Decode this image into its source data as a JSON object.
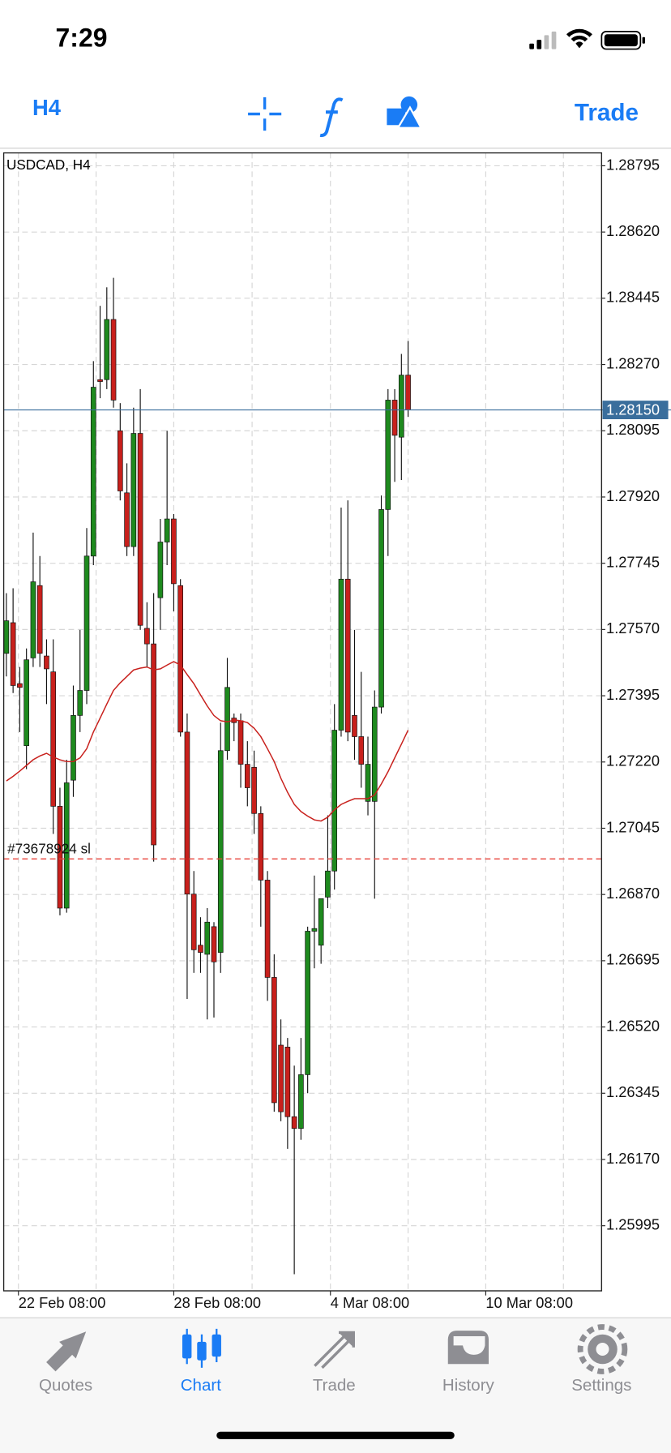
{
  "status_bar": {
    "time": "7:29"
  },
  "toolbar": {
    "timeframe": "H4",
    "trade": "Trade"
  },
  "chart_data": {
    "type": "candlestick",
    "title": "USDCAD, H4",
    "open": [
      1.27507,
      1.27588,
      1.27427,
      1.27263,
      1.27495,
      1.27686,
      1.275,
      1.27458,
      1.27103,
      1.26834,
      1.27172,
      1.27343,
      1.27409,
      1.27764,
      1.2823,
      1.2823,
      1.28389,
      1.28095,
      1.27931,
      1.27789,
      1.28088,
      1.27573,
      1.27532,
      1.27654,
      1.27801,
      1.27862,
      1.27686,
      1.27299,
      1.26871,
      1.26736,
      1.26712,
      1.26785,
      1.26717,
      1.2725,
      1.27336,
      1.27329,
      1.27214,
      1.27206,
      1.27084,
      1.26908,
      1.26651,
      1.26472,
      1.26467,
      1.26283,
      1.26252,
      1.26394,
      1.26773,
      1.26736,
      1.26863,
      1.26932,
      1.27304,
      1.27703,
      1.27343,
      1.27287,
      1.27116,
      1.27116,
      1.27365,
      1.27887,
      1.28176,
      1.28078,
      1.28242
    ],
    "high": [
      1.27666,
      1.27679,
      1.27471,
      1.2752,
      1.27826,
      1.27764,
      1.27544,
      1.27544,
      1.27152,
      1.27226,
      1.27422,
      1.27569,
      1.27838,
      1.28279,
      1.28425,
      1.28474,
      1.28499,
      1.28168,
      1.28009,
      1.28156,
      1.28205,
      1.27642,
      1.27666,
      1.27862,
      1.28095,
      1.27875,
      1.27703,
      1.27348,
      1.26932,
      1.2681,
      1.26834,
      1.26797,
      1.27324,
      1.27495,
      1.27348,
      1.27348,
      1.27275,
      1.2725,
      1.27103,
      1.26932,
      1.26712,
      1.2654,
      1.26491,
      1.26418,
      1.26491,
      1.26785,
      1.2692,
      1.26859,
      1.27079,
      1.27373,
      1.27892,
      1.27911,
      1.27569,
      1.27458,
      1.27287,
      1.27409,
      1.27924,
      1.28205,
      1.28205,
      1.28298,
      1.28332
    ],
    "low": [
      1.27446,
      1.27402,
      1.27299,
      1.27201,
      1.27471,
      1.27471,
      1.27373,
      1.2703,
      1.26815,
      1.26822,
      1.27128,
      1.27299,
      1.27373,
      1.2774,
      1.28181,
      1.28205,
      1.28156,
      1.27911,
      1.27764,
      1.27764,
      1.27569,
      1.27471,
      1.26957,
      1.27569,
      1.2774,
      1.27618,
      1.27287,
      1.26594,
      1.26663,
      1.26663,
      1.2654,
      1.26545,
      1.26663,
      1.27226,
      1.27275,
      1.27152,
      1.27103,
      1.2703,
      1.26785,
      1.26589,
      1.26296,
      1.26271,
      1.26198,
      1.25867,
      1.26222,
      1.26345,
      1.26675,
      1.26687,
      1.26834,
      1.26883,
      1.27287,
      1.27275,
      1.27226,
      1.27152,
      1.27079,
      1.26859,
      1.27348,
      1.27764,
      1.2796,
      1.27965,
      1.28132
    ],
    "close": [
      1.27593,
      1.27422,
      1.27417,
      1.2749,
      1.27696,
      1.27507,
      1.27466,
      1.27103,
      1.26834,
      1.27165,
      1.27343,
      1.27409,
      1.27764,
      1.2821,
      1.28225,
      1.28389,
      1.28176,
      1.27936,
      1.27789,
      1.28088,
      1.27581,
      1.27532,
      1.27001,
      1.27801,
      1.27862,
      1.27691,
      1.27299,
      1.26871,
      1.26724,
      1.26717,
      1.26797,
      1.26692,
      1.2725,
      1.27417,
      1.27324,
      1.27214,
      1.27152,
      1.27084,
      1.26908,
      1.26651,
      1.2632,
      1.26296,
      1.26283,
      1.26252,
      1.26394,
      1.26773,
      1.2678,
      1.26859,
      1.26932,
      1.27304,
      1.27703,
      1.27299,
      1.27287,
      1.27214,
      1.27214,
      1.27365,
      1.27887,
      1.28176,
      1.28083,
      1.28242,
      1.2815
    ],
    "up_color": "#1e8a1e",
    "down_color": "#c8201c",
    "moving_average": {
      "color": "#c8201c",
      "values": [
        1.2717,
        1.27182,
        1.27196,
        1.27211,
        1.27226,
        1.27236,
        1.27243,
        1.27233,
        1.27226,
        1.27221,
        1.27221,
        1.27231,
        1.27255,
        1.27299,
        1.27336,
        1.27373,
        1.27409,
        1.27429,
        1.27446,
        1.27463,
        1.27468,
        1.27471,
        1.27463,
        1.27466,
        1.27476,
        1.27485,
        1.27476,
        1.27451,
        1.27427,
        1.27397,
        1.27368,
        1.27343,
        1.27329,
        1.27326,
        1.27331,
        1.27329,
        1.27324,
        1.27309,
        1.27287,
        1.27255,
        1.27221,
        1.27177,
        1.2714,
        1.27108,
        1.27089,
        1.27077,
        1.27067,
        1.27064,
        1.27074,
        1.27094,
        1.27108,
        1.27116,
        1.27123,
        1.27123,
        1.27123,
        1.27133,
        1.27162,
        1.27194,
        1.27231,
        1.27267,
        1.27304
      ]
    },
    "ylim": [
      1.25823,
      1.28829
    ],
    "yticks": [
      1.28795,
      {
        "value": 1.2862,
        "label": "1.28620"
      },
      1.28445,
      {
        "value": 1.2827,
        "label": "1.28270"
      },
      1.28095,
      {
        "value": 1.2792,
        "label": "1.27920"
      },
      1.27745,
      {
        "value": 1.2757,
        "label": "1.27570"
      },
      1.27395,
      {
        "value": 1.2722,
        "label": "1.27220"
      },
      1.27045,
      {
        "value": 1.2687,
        "label": "1.26870"
      },
      1.26695,
      {
        "value": 1.2652,
        "label": "1.26520"
      },
      1.26345,
      {
        "value": 1.2617,
        "label": "1.26170"
      },
      1.25995
    ],
    "xlim": [
      -0.4,
      88.9
    ],
    "xticks": [
      {
        "value": 1.8,
        "label": "22 Feb 08:00"
      },
      {
        "value": 25,
        "label": "28 Feb 08:00"
      },
      {
        "value": 48.4,
        "label": "4 Mar 08:00"
      },
      {
        "value": 71.6,
        "label": "10 Mar 08:00"
      }
    ],
    "grid": true,
    "price_line": {
      "value": 1.2815,
      "label": "1.28150",
      "color": "#3a6e9c"
    },
    "stop_loss": {
      "value": 1.26964,
      "text": "#73678924 sl",
      "color": "#e8413a"
    }
  },
  "tabs": [
    "Quotes",
    "Chart",
    "Trade",
    "History",
    "Settings"
  ],
  "active_tab": 1
}
